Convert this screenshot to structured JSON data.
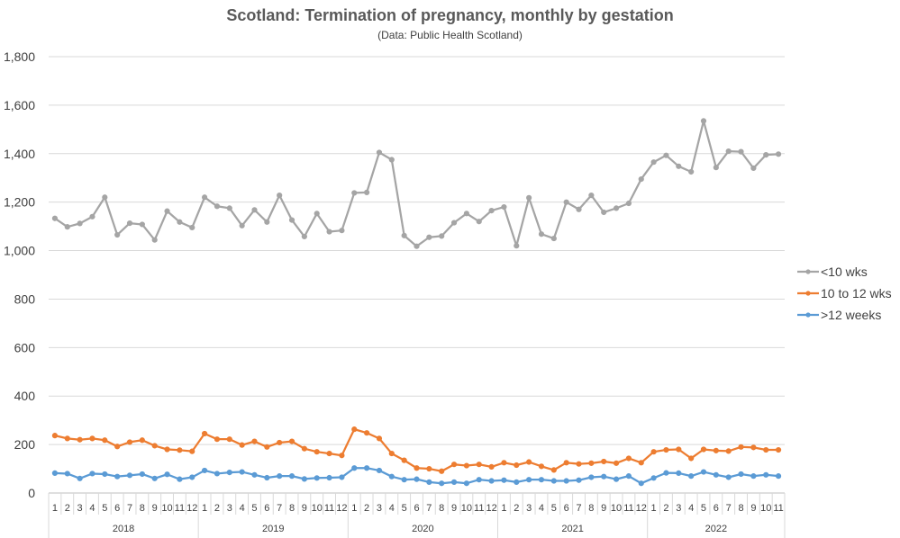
{
  "chart_data": {
    "type": "line",
    "title": "Scotland: Termination of pregnancy, monthly by gestation",
    "subtitle": "(Data: Public Health Scotland)",
    "xlabel": "",
    "ylabel": "",
    "ylim": [
      0,
      1800
    ],
    "yticks": [
      "0",
      "200",
      "400",
      "600",
      "800",
      "1,000",
      "1,200",
      "1,400",
      "1,600",
      "1,800"
    ],
    "grid": true,
    "legend_position": "right",
    "years": [
      {
        "label": "2018",
        "months": [
          "1",
          "2",
          "3",
          "4",
          "5",
          "6",
          "7",
          "8",
          "9",
          "10",
          "11",
          "12"
        ]
      },
      {
        "label": "2019",
        "months": [
          "1",
          "2",
          "3",
          "4",
          "5",
          "6",
          "7",
          "8",
          "9",
          "10",
          "11",
          "12"
        ]
      },
      {
        "label": "2020",
        "months": [
          "1",
          "2",
          "3",
          "4",
          "5",
          "6",
          "7",
          "8",
          "9",
          "10",
          "11",
          "12"
        ]
      },
      {
        "label": "2021",
        "months": [
          "1",
          "2",
          "3",
          "4",
          "5",
          "6",
          "7",
          "8",
          "9",
          "10",
          "11",
          "12"
        ]
      },
      {
        "label": "2022",
        "months": [
          "1",
          "2",
          "3",
          "4",
          "5",
          "6",
          "7",
          "8",
          "9",
          "10",
          "11"
        ]
      }
    ],
    "series": [
      {
        "name": "<10 wks",
        "color": "#a5a5a5",
        "values": [
          1133,
          1098,
          1112,
          1140,
          1220,
          1065,
          1113,
          1108,
          1044,
          1163,
          1118,
          1095,
          1220,
          1183,
          1175,
          1103,
          1168,
          1118,
          1228,
          1126,
          1058,
          1153,
          1078,
          1083,
          1238,
          1240,
          1405,
          1375,
          1062,
          1018,
          1055,
          1060,
          1115,
          1153,
          1120,
          1165,
          1180,
          1020,
          1218,
          1068,
          1050,
          1200,
          1170,
          1228,
          1158,
          1175,
          1195,
          1295,
          1365,
          1393,
          1348,
          1325,
          1535,
          1343,
          1410,
          1408,
          1340,
          1395,
          1398
        ]
      },
      {
        "name": "10 to 12 wks",
        "color": "#ed7d31",
        "values": [
          237,
          225,
          220,
          225,
          218,
          192,
          210,
          218,
          195,
          180,
          177,
          172,
          245,
          222,
          222,
          198,
          213,
          190,
          208,
          213,
          183,
          170,
          163,
          155,
          263,
          248,
          225,
          163,
          135,
          103,
          100,
          90,
          118,
          113,
          118,
          108,
          125,
          115,
          128,
          110,
          95,
          125,
          120,
          123,
          130,
          123,
          143,
          125,
          170,
          178,
          180,
          143,
          180,
          175,
          173,
          190,
          188,
          178,
          178
        ]
      },
      {
        "name": ">12 weeks",
        "color": "#5b9bd5",
        "values": [
          82,
          80,
          60,
          80,
          78,
          68,
          73,
          78,
          60,
          77,
          57,
          65,
          93,
          80,
          85,
          87,
          75,
          63,
          70,
          70,
          58,
          62,
          63,
          65,
          103,
          103,
          93,
          68,
          55,
          57,
          45,
          40,
          45,
          40,
          55,
          50,
          53,
          45,
          55,
          55,
          50,
          50,
          53,
          65,
          68,
          57,
          70,
          40,
          62,
          83,
          82,
          70,
          87,
          75,
          65,
          78,
          70,
          75,
          70
        ]
      }
    ]
  }
}
